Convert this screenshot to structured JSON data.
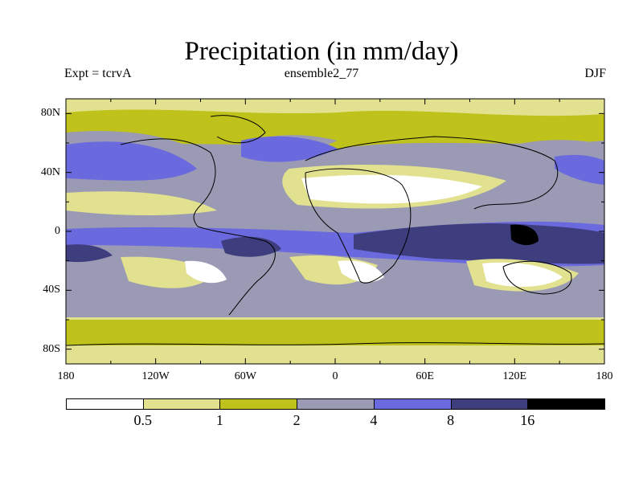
{
  "title": "Precipitation (in mm/day)",
  "experiment_label": "Expt = tcrvA",
  "run_label": "ensemble2_77",
  "season_label": "DJF",
  "map": {
    "lon_range": [
      -180,
      180
    ],
    "lat_range": [
      -90,
      90
    ],
    "x_tick_labels": [
      "180",
      "120W",
      "60W",
      "0",
      "60E",
      "120E",
      "180"
    ],
    "y_tick_labels": [
      "80N",
      "40N",
      "0",
      "40S",
      "80S"
    ]
  },
  "legend": {
    "colors": [
      "#ffffff",
      "#e2e18f",
      "#c0c21c",
      "#9a9ab4",
      "#6a6ade",
      "#3e3d7e",
      "#000000"
    ],
    "thresholds": [
      "0.5",
      "1",
      "2",
      "4",
      "8",
      "16"
    ],
    "categories": [
      "<0.5",
      "0.5-1",
      "1-2",
      "2-4",
      "4-8",
      "8-16",
      ">16"
    ]
  }
}
